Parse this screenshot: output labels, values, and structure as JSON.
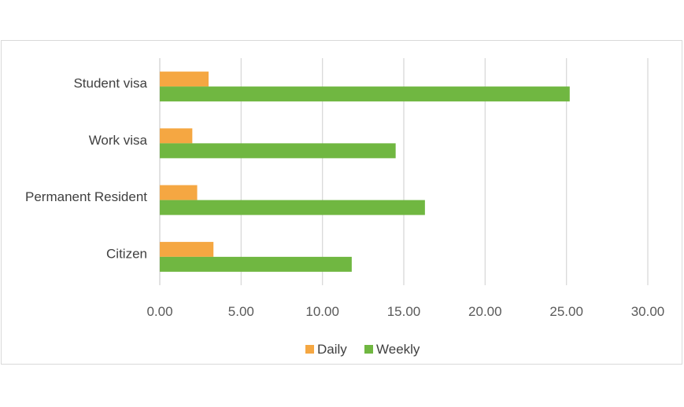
{
  "chart_data": {
    "type": "bar",
    "orientation": "horizontal",
    "categories": [
      "Student visa",
      "Work visa",
      "Permanent Resident",
      "Citizen"
    ],
    "series": [
      {
        "name": "Daily",
        "color": "#f5a742",
        "values": [
          3.0,
          2.0,
          2.3,
          3.3
        ]
      },
      {
        "name": "Weekly",
        "color": "#70b741",
        "values": [
          25.2,
          14.5,
          16.3,
          11.8
        ]
      }
    ],
    "xlim": [
      0,
      30
    ],
    "x_ticks": [
      "0.00",
      "5.00",
      "10.00",
      "15.00",
      "20.00",
      "25.00",
      "30.00"
    ],
    "x_tick_values": [
      0,
      5,
      10,
      15,
      20,
      25,
      30
    ],
    "grid": true,
    "legend_position": "bottom",
    "title": "",
    "xlabel": "",
    "ylabel": ""
  }
}
